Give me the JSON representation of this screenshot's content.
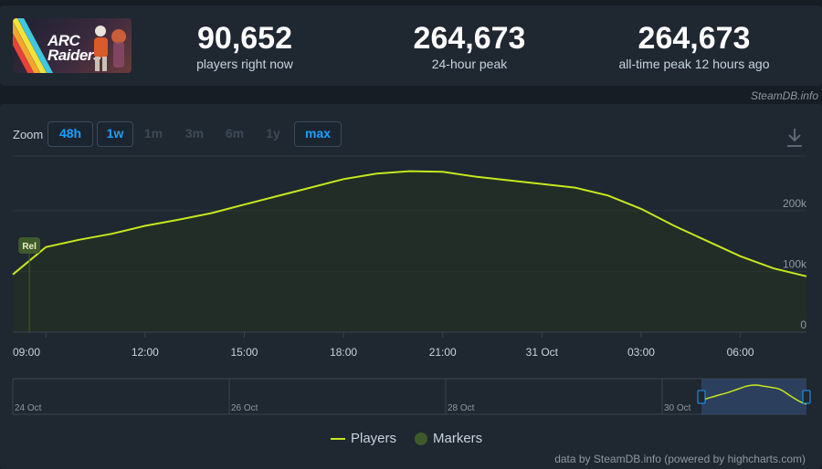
{
  "header": {
    "logo_line1": "ARC",
    "logo_line2": "Raiders",
    "stats": [
      {
        "value": "90,652",
        "label": "players right now"
      },
      {
        "value": "264,673",
        "label": "24-hour peak"
      },
      {
        "value": "264,673",
        "label": "all-time peak 12 hours ago"
      }
    ],
    "credit": "SteamDB.info"
  },
  "zoom": {
    "label": "Zoom",
    "buttons": [
      {
        "label": "48h",
        "active": true
      },
      {
        "label": "1w",
        "active": true
      },
      {
        "label": "1m",
        "active": false
      },
      {
        "label": "3m",
        "active": false
      },
      {
        "label": "6m",
        "active": false
      },
      {
        "label": "1y",
        "active": false
      },
      {
        "label": "max",
        "active": true
      }
    ]
  },
  "colors": {
    "line": "#c8e61e",
    "marker": "#3f5a2a",
    "background": "#1f2731",
    "nav_selection": "#35507a"
  },
  "chart_data": {
    "type": "line",
    "x": [
      "08:00",
      "09:00",
      "10:00",
      "11:00",
      "12:00",
      "13:00",
      "14:00",
      "15:00",
      "16:00",
      "17:00",
      "18:00",
      "19:00",
      "20:00",
      "21:00",
      "22:00",
      "23:00",
      "31 Oct",
      "01:00",
      "02:00",
      "03:00",
      "04:00",
      "05:00",
      "06:00",
      "07:00",
      "08:00"
    ],
    "series": [
      {
        "name": "Players",
        "values": [
          95000,
          140000,
          152000,
          162000,
          175000,
          185000,
          196000,
          210000,
          224000,
          238000,
          252000,
          261000,
          265000,
          264000,
          256000,
          250000,
          244000,
          238000,
          225000,
          203000,
          175000,
          150000,
          125000,
          105000,
          92000
        ]
      }
    ],
    "x_ticks": [
      "09:00",
      "12:00",
      "15:00",
      "18:00",
      "21:00",
      "31 Oct",
      "03:00",
      "06:00"
    ],
    "y_ticks": [
      "0",
      "100k",
      "200k"
    ],
    "ylim": [
      0,
      290000
    ],
    "marker": {
      "label": "Rel",
      "x": "08:30"
    },
    "navigator": {
      "labels": [
        "24 Oct",
        "26 Oct",
        "28 Oct",
        "30 Oct"
      ]
    },
    "legend": [
      "Players",
      "Markers"
    ],
    "grid": true,
    "legend_position": "bottom-center"
  },
  "footer": {
    "credit": "data by SteamDB.info (powered by highcharts.com)"
  }
}
